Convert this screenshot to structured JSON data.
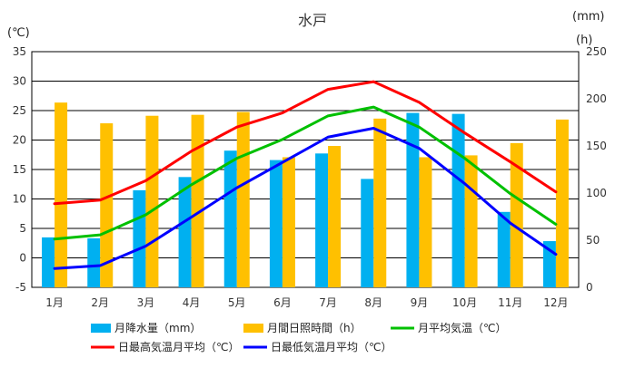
{
  "chart_data": {
    "type": "bar",
    "title": "水戸",
    "left_unit": "(℃)",
    "right_unit_top": "(mm)",
    "right_unit": "(h)",
    "categories": [
      "1月",
      "2月",
      "3月",
      "4月",
      "5月",
      "6月",
      "7月",
      "8月",
      "9月",
      "10月",
      "11月",
      "12月"
    ],
    "left_axis": {
      "min": -5,
      "max": 35,
      "ticks": [
        -5,
        0,
        5,
        10,
        15,
        20,
        25,
        30,
        35
      ]
    },
    "right_axis": {
      "min": 0,
      "max": 250,
      "ticks": [
        0,
        50,
        100,
        150,
        200,
        250
      ]
    },
    "grid": true,
    "legend_position": "bottom",
    "series": [
      {
        "name": "月降水量（mm）",
        "kind": "bar",
        "axis": "right",
        "color": "#00b0f0",
        "values": [
          53,
          52,
          103,
          117,
          145,
          135,
          142,
          115,
          185,
          184,
          80,
          49
        ]
      },
      {
        "name": "月間日照時間（h）",
        "kind": "bar",
        "axis": "right",
        "color": "#ffc000",
        "values": [
          196,
          174,
          182,
          183,
          186,
          138,
          150,
          179,
          138,
          140,
          153,
          178
        ]
      },
      {
        "name": "月平均気温（℃）",
        "kind": "line",
        "axis": "left",
        "color": "#00c000",
        "values": [
          3.2,
          3.9,
          7.3,
          12.4,
          16.9,
          20.1,
          24.1,
          25.6,
          22.2,
          16.9,
          10.9,
          5.7
        ]
      },
      {
        "name": "日最高気温月平均（℃）",
        "kind": "line",
        "axis": "left",
        "color": "#ff0000",
        "values": [
          9.2,
          9.8,
          13.1,
          18.1,
          22.2,
          24.6,
          28.6,
          29.9,
          26.4,
          21.2,
          16.3,
          11.2
        ]
      },
      {
        "name": "日最低気温月平均（℃）",
        "kind": "line",
        "axis": "left",
        "color": "#0000ff",
        "values": [
          -1.8,
          -1.3,
          2.0,
          6.9,
          11.9,
          16.2,
          20.5,
          22.0,
          18.6,
          12.6,
          5.9,
          0.6
        ]
      }
    ]
  }
}
